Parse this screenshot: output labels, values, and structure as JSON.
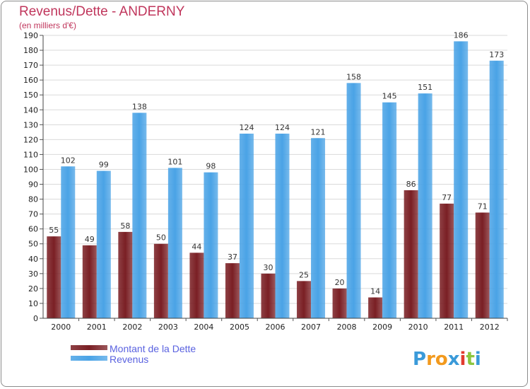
{
  "chart_data": {
    "type": "bar",
    "title": "Revenus/Dette - ANDERNY",
    "subtitle": "(en milliers d'€)",
    "categories": [
      "2000",
      "2001",
      "2002",
      "2003",
      "2004",
      "2005",
      "2006",
      "2007",
      "2008",
      "2009",
      "2010",
      "2011",
      "2012"
    ],
    "series": [
      {
        "name": "Montant de la Dette",
        "color": "#7a1f24",
        "values": [
          55,
          49,
          58,
          50,
          44,
          37,
          30,
          25,
          20,
          14,
          86,
          77,
          71
        ]
      },
      {
        "name": "Revenus",
        "color": "#4aa3e6",
        "values": [
          102,
          99,
          138,
          101,
          98,
          124,
          124,
          121,
          158,
          145,
          151,
          186,
          173
        ]
      }
    ],
    "ylim": [
      0,
      190
    ],
    "ytick_step": 10,
    "grid": true,
    "legend": "bottom-left"
  },
  "brand": {
    "letters": [
      "P",
      "r",
      "o",
      "x",
      "i",
      "t",
      "i"
    ],
    "colors": [
      "#3a9ad9",
      "#f29a1e",
      "#f29a1e",
      "#3a9ad9",
      "#e23b2e",
      "#8cc63f",
      "#3a9ad9"
    ]
  }
}
